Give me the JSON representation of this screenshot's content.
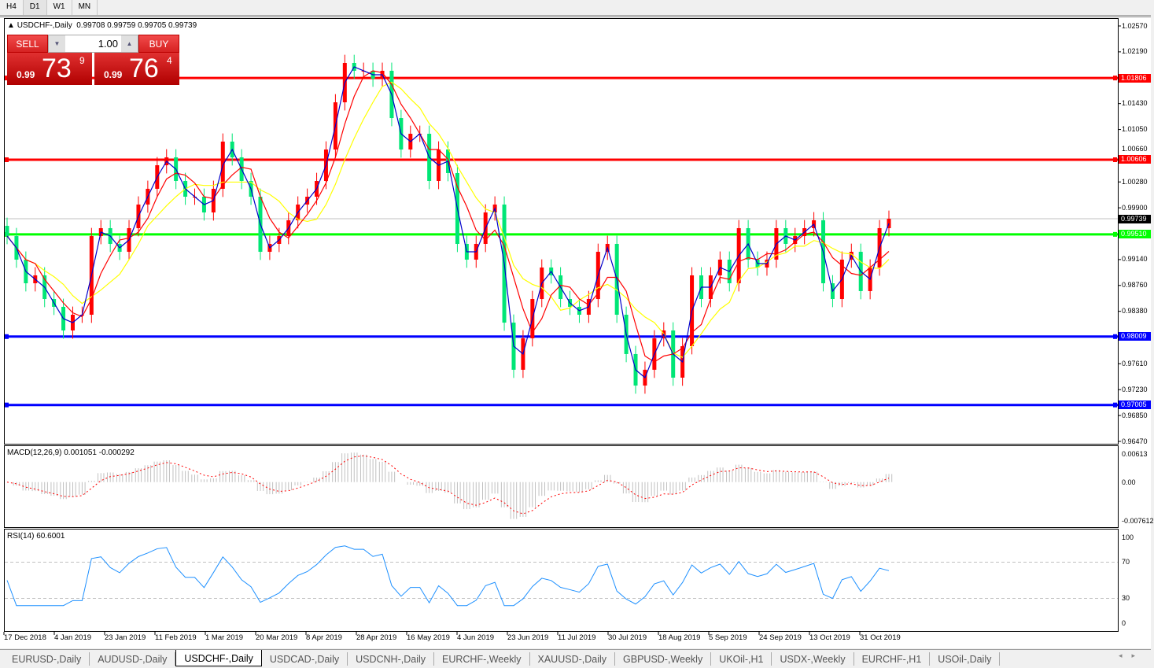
{
  "timeframes": [
    "H4",
    "D1",
    "W1",
    "MN"
  ],
  "active_timeframe": "D1",
  "chart": {
    "symbol_title": "USDCHF-,Daily",
    "ohlc": "0.99708 0.99759 0.99705 0.99739"
  },
  "trade_panel": {
    "sell_label": "SELL",
    "buy_label": "BUY",
    "lot": "1.00",
    "sell_prefix": "0.99",
    "sell_big": "73",
    "sell_sup": "9",
    "buy_prefix": "0.99",
    "buy_big": "76",
    "buy_sup": "4"
  },
  "indicators": {
    "macd_label": "MACD(12,26,9) 0.001051 -0.000292",
    "rsi_label": "RSI(14) 60.6001"
  },
  "tabs": [
    "EURUSD-,Daily",
    "AUDUSD-,Daily",
    "USDCHF-,Daily",
    "USDCAD-,Daily",
    "USDCNH-,Daily",
    "EURCHF-,Weekly",
    "XAUUSD-,Daily",
    "GBPUSD-,Weekly",
    "UKOil-,H1",
    "USDX-,Weekly",
    "EURCHF-,H1",
    "USOil-,Daily"
  ],
  "active_tab": "USDCHF-,Daily",
  "colors": {
    "bull": "#ff0000",
    "bear": "#00e676",
    "ma_fast": "#0000cc",
    "ma_mid": "#ff0000",
    "ma_slow": "#ffff00",
    "rsi": "#1e90ff",
    "macd_hist": "#c0c0c0",
    "macd_signal": "#ff0000"
  },
  "chart_data": [
    {
      "type": "candlestick",
      "title": "USDCHF-,Daily",
      "x_tick_labels": [
        "17 Dec 2018",
        "4 Jan 2019",
        "23 Jan 2019",
        "11 Feb 2019",
        "1 Mar 2019",
        "20 Mar 2019",
        "8 Apr 2019",
        "28 Apr 2019",
        "16 May 2019",
        "4 Jun 2019",
        "23 Jun 2019",
        "11 Jul 2019",
        "30 Jul 2019",
        "18 Aug 2019",
        "5 Sep 2019",
        "24 Sep 2019",
        "13 Oct 2019",
        "31 Oct 2019"
      ],
      "y_tick_labels": [
        "1.02570",
        "1.02190",
        "1.01430",
        "1.01050",
        "1.00660",
        "1.00280",
        "0.99900",
        "0.99140",
        "0.98760",
        "0.98380",
        "0.97610",
        "0.97230",
        "0.96850",
        "0.96470"
      ],
      "ylim": [
        0.9647,
        1.0257
      ],
      "closes": [
        0.99485,
        0.99139,
        0.98792,
        0.98908,
        0.98561,
        0.98446,
        0.98099,
        0.9833,
        0.9833,
        0.99485,
        0.99601,
        0.9937,
        0.99254,
        0.99601,
        0.99948,
        1.00179,
        1.00525,
        1.00641,
        1.00294,
        1.00063,
        1.00063,
        0.99832,
        1.00179,
        1.00872,
        1.00641,
        1.00294,
        1.00063,
        0.99254,
        0.9937,
        0.99485,
        0.99717,
        0.99948,
        1.00063,
        1.00294,
        1.00756,
        1.01449,
        1.02027,
        1.01912,
        1.01912,
        1.01796,
        1.01912,
        1.01218,
        1.00756,
        1.00987,
        1.00987,
        1.00294,
        1.00756,
        1.0041,
        0.9937,
        0.99139,
        0.9937,
        0.99832,
        0.99948,
        0.98214,
        0.97522,
        0.97984,
        0.98561,
        0.99023,
        0.98908,
        0.98561,
        0.98446,
        0.9833,
        0.98561,
        0.99254,
        0.9937,
        0.9833,
        0.97753,
        0.9729,
        0.97522,
        0.97984,
        0.98099,
        0.97406,
        0.97868,
        0.98908,
        0.98561,
        0.98908,
        0.99139,
        0.98792,
        0.99601,
        0.99139,
        0.99023,
        0.99139,
        0.99601,
        0.9937,
        0.99485,
        0.99601,
        0.99717,
        0.98792,
        0.98561,
        0.99139,
        0.99254,
        0.98677,
        0.99023,
        0.99601,
        0.99739
      ],
      "horizontal_lines": [
        {
          "price": "1.01806",
          "color": "#ff0000"
        },
        {
          "price": "1.00606",
          "color": "#ff0000"
        },
        {
          "price": "0.99510",
          "color": "#00ff00"
        },
        {
          "price": "0.98009",
          "color": "#0000ff"
        },
        {
          "price": "0.97005",
          "color": "#0000ff"
        }
      ],
      "current_price": "0.99739"
    },
    {
      "type": "bar",
      "name": "MACD(12,26,9)",
      "y_tick_labels": [
        "0.00613",
        "0.00",
        "-0.007612"
      ],
      "ylim": [
        -0.00761,
        0.00613
      ],
      "values_shown": [
        0.001051,
        -0.000292
      ]
    },
    {
      "type": "line",
      "name": "RSI(14)",
      "y_tick_labels": [
        "100",
        "70",
        "30",
        "0"
      ],
      "ylim": [
        0,
        100
      ],
      "levels": [
        70,
        30
      ],
      "last": 60.6001
    }
  ]
}
